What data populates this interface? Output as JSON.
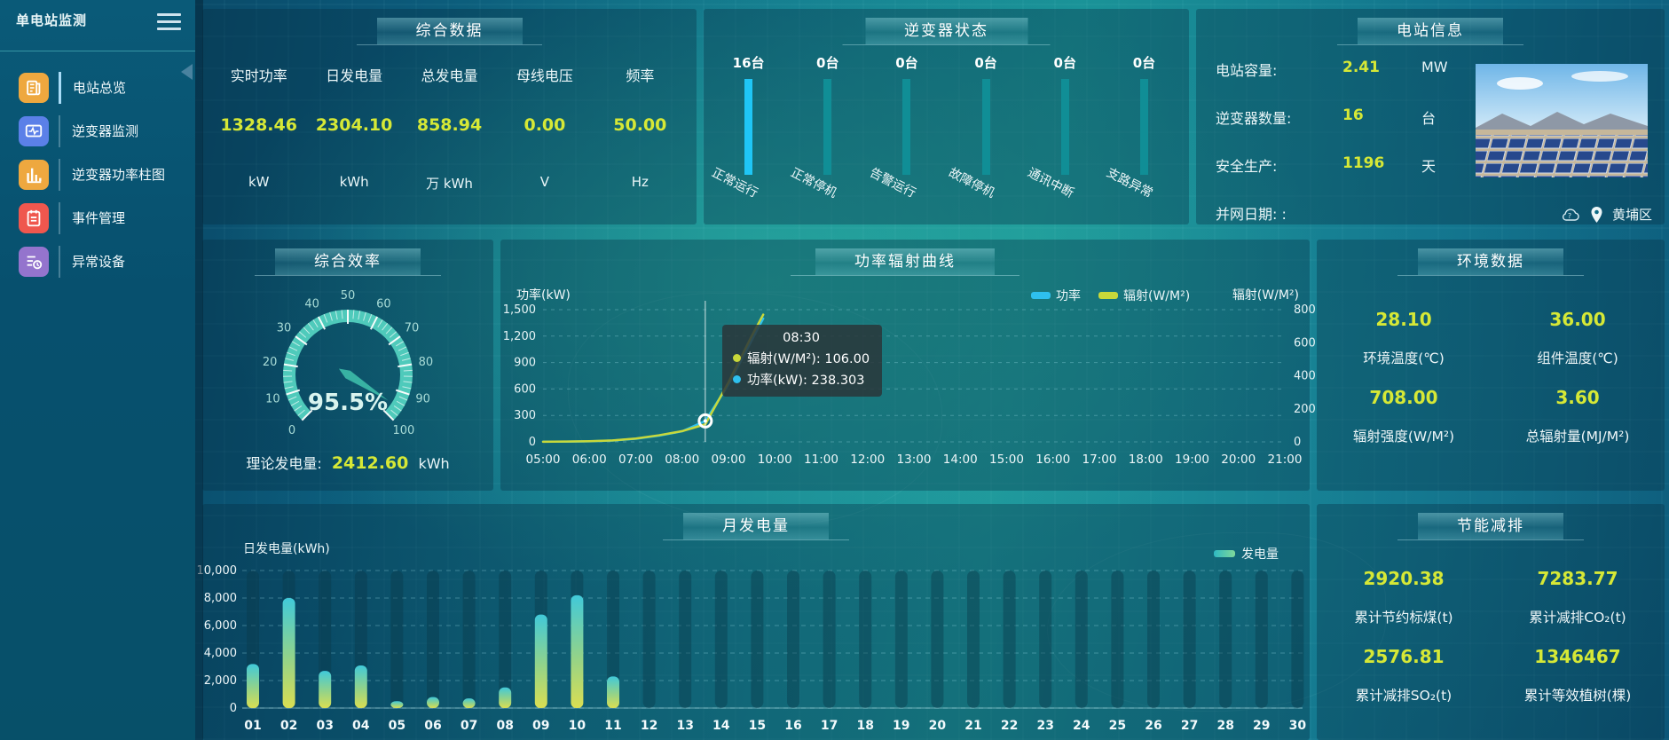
{
  "app": {
    "title": "单电站监测"
  },
  "sidebar": {
    "items": [
      {
        "label": "电站总览",
        "icon": "overview-document-icon",
        "color": "#eea83f",
        "active": true
      },
      {
        "label": "逆变器监测",
        "icon": "inverter-monitor-icon",
        "color": "#5b80e8",
        "active": false
      },
      {
        "label": "逆变器功率柱图",
        "icon": "power-bars-icon",
        "color": "#eea83f",
        "active": false
      },
      {
        "label": "事件管理",
        "icon": "event-notebook-icon",
        "color": "#ef574e",
        "active": false
      },
      {
        "label": "异常设备",
        "icon": "abnormal-device-icon",
        "color": "#9474cd",
        "active": false
      }
    ]
  },
  "panels": {
    "summary": {
      "title": "综合数据",
      "metrics": [
        {
          "label": "实时功率",
          "value": "1328.46",
          "unit": "kW"
        },
        {
          "label": "日发电量",
          "value": "2304.10",
          "unit": "kWh"
        },
        {
          "label": "总发电量",
          "value": "858.94",
          "unit": "万 kWh"
        },
        {
          "label": "母线电压",
          "value": "0.00",
          "unit": "V"
        },
        {
          "label": "频率",
          "value": "50.00",
          "unit": "Hz"
        }
      ]
    },
    "inverter_status": {
      "title": "逆变器状态",
      "bars": [
        {
          "count": "16台",
          "label": "正常运行",
          "color": "#1fc6f6"
        },
        {
          "count": "0台",
          "label": "正常停机",
          "color": "#108e96"
        },
        {
          "count": "0台",
          "label": "告警运行",
          "color": "#108e96"
        },
        {
          "count": "0台",
          "label": "故障停机",
          "color": "#108e96"
        },
        {
          "count": "0台",
          "label": "通讯中断",
          "color": "#108e96"
        },
        {
          "count": "0台",
          "label": "支路异常",
          "color": "#108e96"
        }
      ]
    },
    "station_info": {
      "title": "电站信息",
      "rows": [
        {
          "label": "电站容量:",
          "value": "2.41",
          "unit": "MW"
        },
        {
          "label": "逆变器数量:",
          "value": "16",
          "unit": "台"
        },
        {
          "label": "安全生产:",
          "value": "1196",
          "unit": "天"
        },
        {
          "label": "并网日期: :",
          "value": "",
          "unit": ""
        }
      ],
      "location": "黄埔区"
    },
    "efficiency": {
      "title": "综合效率",
      "footer_label": "理论发电量:",
      "footer_value": "2412.60",
      "footer_unit": "kWh"
    },
    "power_curve": {
      "title": "功率辐射曲线",
      "tooltip": {
        "time": "08:30",
        "rows": [
          {
            "text": "辐射(W/M²): 106.00",
            "color": "#c8d83a"
          },
          {
            "text": "功率(kW): 238.303",
            "color": "#2ec0ee"
          }
        ]
      }
    },
    "environment": {
      "title": "环境数据",
      "cells": [
        {
          "value": "28.10",
          "label": "环境温度(℃)"
        },
        {
          "value": "36.00",
          "label": "组件温度(℃)"
        },
        {
          "value": "708.00",
          "label": "辐射强度(W/M²)"
        },
        {
          "value": "3.60",
          "label": "总辐射量(MJ/M²)"
        }
      ]
    },
    "monthly": {
      "title": "月发电量"
    },
    "saving": {
      "title": "节能减排",
      "cells": [
        {
          "value": "2920.38",
          "label": "累计节约标煤(t)"
        },
        {
          "value": "7283.77",
          "label": "累计减排CO₂(t)"
        },
        {
          "value": "2576.81",
          "label": "累计减排SO₂(t)"
        },
        {
          "value": "1346467",
          "label": "累计等效植树(棵)"
        }
      ]
    }
  },
  "chart_data": [
    {
      "id": "inverter-status",
      "type": "bar",
      "title": "逆变器状态",
      "categories": [
        "正常运行",
        "正常停机",
        "告警运行",
        "故障停机",
        "通讯中断",
        "支路异常"
      ],
      "values": [
        16,
        0,
        0,
        0,
        0,
        0
      ],
      "unit": "台"
    },
    {
      "id": "efficiency-gauge",
      "type": "gauge",
      "title": "综合效率",
      "value": 95.5,
      "min": 0,
      "max": 100,
      "label": "95.5%",
      "tick_step": 10
    },
    {
      "id": "power-radiation",
      "type": "line",
      "title": "功率辐射曲线",
      "x_hours": [
        5,
        5.5,
        6,
        6.5,
        7,
        7.5,
        8,
        8.5,
        9,
        9.5,
        9.75
      ],
      "x_axis_labels": [
        "05:00",
        "06:00",
        "07:00",
        "08:00",
        "09:00",
        "10:00",
        "11:00",
        "12:00",
        "13:00",
        "14:00",
        "15:00",
        "16:00",
        "17:00",
        "18:00",
        "19:00",
        "20:00",
        "21:00"
      ],
      "series": [
        {
          "name": "功率",
          "axis": "left",
          "color": "#2ec0ee",
          "values": [
            2,
            3,
            6,
            15,
            35,
            70,
            120,
            238.303,
            650,
            1150,
            1400
          ]
        },
        {
          "name": "辐射(W/M²)",
          "axis": "right",
          "color": "#c8d83a",
          "values": [
            1,
            2,
            4,
            9,
            20,
            40,
            65,
            106,
            360,
            640,
            770
          ]
        }
      ],
      "y_left": {
        "label": "功率(kW)",
        "min": 0,
        "max": 1500,
        "ticks": [
          0,
          300,
          600,
          900,
          1200,
          1500
        ],
        "tick_labels": [
          "0",
          "300",
          "600",
          "900",
          "1,200",
          "1,500"
        ]
      },
      "y_right": {
        "label": "辐射(W/M²)",
        "min": 0,
        "max": 800,
        "ticks": [
          0,
          200,
          400,
          600,
          800
        ],
        "tick_labels": [
          "0",
          "200",
          "400",
          "600",
          "800"
        ]
      },
      "crosshair_hour": 8.5,
      "grid": "dashed",
      "legend_position": "top"
    },
    {
      "id": "monthly-energy",
      "type": "bar",
      "title": "月发电量",
      "ylabel": "日发电量(kWh)",
      "legend": "发电量",
      "categories": [
        "01",
        "02",
        "03",
        "04",
        "05",
        "06",
        "07",
        "08",
        "09",
        "10",
        "11",
        "12",
        "13",
        "14",
        "15",
        "16",
        "17",
        "18",
        "19",
        "20",
        "21",
        "22",
        "23",
        "24",
        "25",
        "26",
        "27",
        "28",
        "29",
        "30"
      ],
      "values": [
        3200,
        8000,
        2700,
        3100,
        500,
        800,
        700,
        1500,
        6800,
        8200,
        2300,
        0,
        0,
        0,
        0,
        0,
        0,
        0,
        0,
        0,
        0,
        0,
        0,
        0,
        0,
        0,
        0,
        0,
        0,
        0
      ],
      "ylim": [
        0,
        10000
      ],
      "ytick_labels": [
        "0",
        "2,000",
        "4,000",
        "6,000",
        "8,000",
        "10,000"
      ]
    }
  ]
}
